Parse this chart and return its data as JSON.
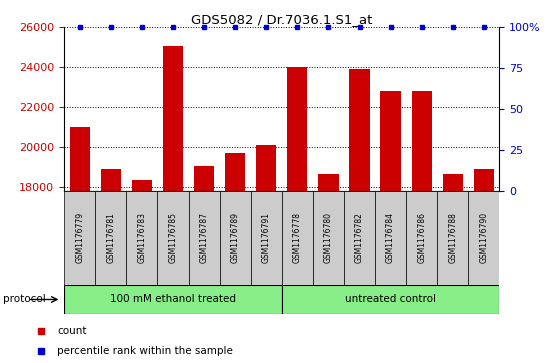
{
  "title": "GDS5082 / Dr.7036.1.S1_at",
  "samples": [
    "GSM1176779",
    "GSM1176781",
    "GSM1176783",
    "GSM1176785",
    "GSM1176787",
    "GSM1176789",
    "GSM1176791",
    "GSM1176778",
    "GSM1176780",
    "GSM1176782",
    "GSM1176784",
    "GSM1176786",
    "GSM1176788",
    "GSM1176790"
  ],
  "counts": [
    21000,
    18900,
    18350,
    25050,
    19050,
    19700,
    20100,
    24000,
    18650,
    23900,
    22800,
    22800,
    18650,
    18900
  ],
  "percentiles": [
    100,
    100,
    100,
    100,
    100,
    100,
    100,
    100,
    100,
    100,
    100,
    100,
    100,
    100
  ],
  "ylim_left": [
    17800,
    26000
  ],
  "ylim_right": [
    0,
    100
  ],
  "yticks_left": [
    18000,
    20000,
    22000,
    24000,
    26000
  ],
  "yticks_right": [
    0,
    25,
    50,
    75,
    100
  ],
  "bar_color": "#cc0000",
  "dot_color": "#0000cc",
  "group1_label": "100 mM ethanol treated",
  "group1_count": 7,
  "group2_label": "untreated control",
  "group2_count": 7,
  "group_bg_color": "#88ee88",
  "sample_bg_color": "#cccccc",
  "legend_count_label": "count",
  "legend_percentile_label": "percentile rank within the sample",
  "protocol_label": "protocol"
}
